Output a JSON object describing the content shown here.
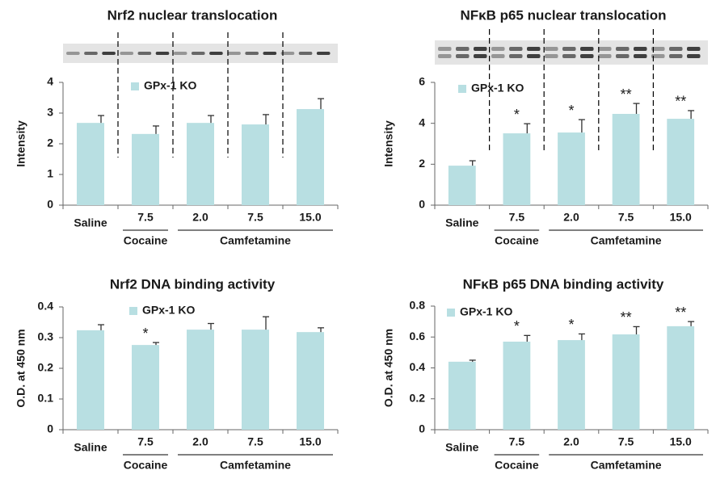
{
  "chart_data": [
    {
      "type": "bar",
      "title": "Nrf2 nuclear translocation",
      "ylabel": "Intensity",
      "categories": [
        "Saline",
        "7.5",
        "2.0",
        "7.5",
        "15.0"
      ],
      "groups": [
        "Cocaine",
        "Camfetamine"
      ],
      "series": [
        {
          "name": "GPx-1 KO",
          "color": "#b8dfe2",
          "values": [
            2.68,
            2.32,
            2.68,
            2.63,
            3.13
          ],
          "errors": [
            0.24,
            0.26,
            0.24,
            0.32,
            0.34
          ]
        }
      ],
      "significance": [
        null,
        null,
        null,
        null,
        null
      ],
      "ylim": [
        0,
        4
      ],
      "yticks": [
        0,
        1,
        2,
        3,
        4
      ]
    },
    {
      "type": "bar",
      "title": "NFκB p65 nuclear translocation",
      "ylabel": "Intensity",
      "categories": [
        "Saline",
        "7.5",
        "2.0",
        "7.5",
        "15.0"
      ],
      "groups": [
        "Cocaine",
        "Camfetamine"
      ],
      "series": [
        {
          "name": "GPx-1 KO",
          "color": "#b8dfe2",
          "values": [
            1.93,
            3.51,
            3.55,
            4.46,
            4.22
          ],
          "errors": [
            0.24,
            0.47,
            0.63,
            0.51,
            0.4
          ]
        }
      ],
      "significance": [
        null,
        "*",
        "*",
        "**",
        "**"
      ],
      "ylim": [
        0,
        6
      ],
      "yticks": [
        0,
        2,
        4,
        6
      ]
    },
    {
      "type": "bar",
      "title": "Nrf2 DNA binding activity",
      "ylabel": "O.D. at 450 nm",
      "categories": [
        "Saline",
        "7.5",
        "2.0",
        "7.5",
        "15.0"
      ],
      "groups": [
        "Cocaine",
        "Camfetamine"
      ],
      "series": [
        {
          "name": "GPx-1 KO",
          "color": "#b8dfe2",
          "values": [
            0.324,
            0.276,
            0.326,
            0.326,
            0.318
          ],
          "errors": [
            0.018,
            0.008,
            0.02,
            0.042,
            0.014
          ]
        }
      ],
      "significance": [
        null,
        "*",
        null,
        null,
        null
      ],
      "ylim": [
        0,
        0.4
      ],
      "yticks": [
        0,
        0.1,
        0.2,
        0.3,
        0.4
      ]
    },
    {
      "type": "bar",
      "title": "NFκB p65 DNA binding activity",
      "ylabel": "O.D. at 450 nm",
      "categories": [
        "Saline",
        "7.5",
        "2.0",
        "7.5",
        "15.0"
      ],
      "groups": [
        "Cocaine",
        "Camfetamine"
      ],
      "series": [
        {
          "name": "GPx-1 KO",
          "color": "#b8dfe2",
          "values": [
            0.44,
            0.57,
            0.58,
            0.617,
            0.67
          ],
          "errors": [
            0.01,
            0.04,
            0.04,
            0.05,
            0.03
          ]
        }
      ],
      "significance": [
        null,
        "*",
        "*",
        "**",
        "**"
      ],
      "ylim": [
        0,
        0.8
      ],
      "yticks": [
        0,
        0.2,
        0.4,
        0.6,
        0.8
      ]
    }
  ]
}
